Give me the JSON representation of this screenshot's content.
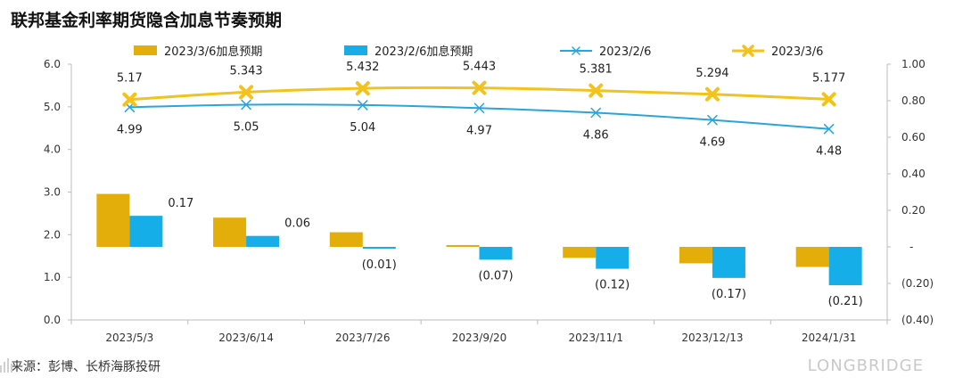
{
  "title": "联邦基金利率期货隐含加息节奏预期",
  "source": "来源：彭博、长桥海豚投研",
  "brand": "LONGBRIDGE",
  "colors": {
    "bar_mar": "#E3AE0A",
    "bar_feb": "#15AEE8",
    "line_feb": "#29A5DD",
    "line_mar": "#F2C21D"
  },
  "chart_data": {
    "type": "bar",
    "categories": [
      "2023/5/3",
      "2023/6/14",
      "2023/7/26",
      "2023/9/20",
      "2023/11/1",
      "2023/12/13",
      "2024/1/31"
    ],
    "left_axis": {
      "ticks": [
        "6.0",
        "5.0",
        "4.0",
        "3.0",
        "2.0",
        "1.0",
        "0.0"
      ],
      "ylim": [
        0,
        6
      ]
    },
    "right_axis": {
      "ticks": [
        "1.00",
        "0.80",
        "0.60",
        "0.40",
        "0.20",
        "-",
        "(0.20)",
        "(0.40)"
      ],
      "ylim": [
        -0.4,
        1.0
      ]
    },
    "series": [
      {
        "name": "2023/3/6加息预期",
        "type": "bar",
        "axis": "right",
        "color": "#E3AE0A",
        "values": [
          0.29,
          0.16,
          0.08,
          0.01,
          -0.06,
          -0.09,
          -0.11
        ]
      },
      {
        "name": "2023/2/6加息预期",
        "type": "bar",
        "axis": "right",
        "color": "#15AEE8",
        "values": [
          0.17,
          0.06,
          -0.01,
          -0.07,
          -0.12,
          -0.17,
          -0.21
        ],
        "labels": [
          "0.17",
          "0.06",
          "(0.01)",
          "(0.07)",
          "(0.12)",
          "(0.17)",
          "(0.21)"
        ]
      },
      {
        "name": "2023/2/6",
        "type": "line",
        "axis": "left",
        "marker": "x",
        "color": "#29A5DD",
        "values": [
          4.99,
          5.05,
          5.04,
          4.97,
          4.86,
          4.69,
          4.48
        ],
        "labels": [
          "4.99",
          "5.05",
          "5.04",
          "4.97",
          "4.86",
          "4.69",
          "4.48"
        ]
      },
      {
        "name": "2023/3/6",
        "type": "line",
        "axis": "left",
        "marker": "x",
        "color": "#F2C21D",
        "values": [
          5.17,
          5.343,
          5.432,
          5.443,
          5.381,
          5.294,
          5.177
        ],
        "labels": [
          "5.17",
          "5.343",
          "5.432",
          "5.443",
          "5.381",
          "5.294",
          "5.177"
        ]
      }
    ],
    "legend_position": "top",
    "grid": false
  }
}
